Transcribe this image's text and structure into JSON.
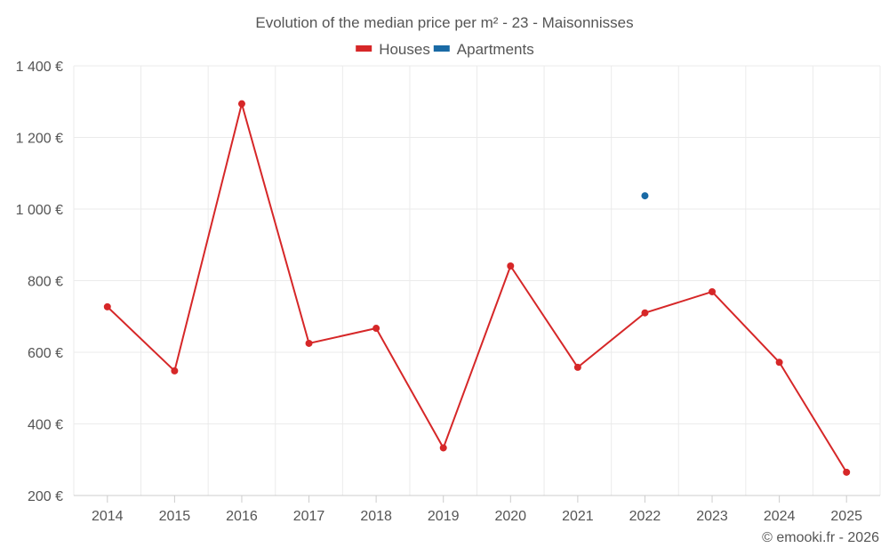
{
  "chart_data": {
    "type": "line",
    "title": "Evolution of the median price per m² - 23 - Maisonnisses",
    "categories": [
      "2014",
      "2015",
      "2016",
      "2017",
      "2018",
      "2019",
      "2020",
      "2021",
      "2022",
      "2023",
      "2024",
      "2025"
    ],
    "series": [
      {
        "name": "Houses",
        "color": "#d62728",
        "values": [
          727,
          548,
          1294,
          625,
          667,
          333,
          841,
          558,
          710,
          769,
          572,
          265
        ]
      },
      {
        "name": "Apartments",
        "color": "#1a6aa5",
        "values": [
          null,
          null,
          null,
          null,
          null,
          null,
          null,
          null,
          1037,
          null,
          null,
          null
        ]
      }
    ],
    "ylim": [
      200,
      1400
    ],
    "yticks": [
      200,
      400,
      600,
      800,
      1000,
      1200,
      1400
    ],
    "ytick_labels": [
      "200 €",
      "400 €",
      "600 €",
      "800 €",
      "1 000 €",
      "1 200 €",
      "1 400 €"
    ],
    "grid": true,
    "legend_position": "top-center",
    "xlabel": "",
    "ylabel": ""
  },
  "credit": "© emooki.fr - 2026"
}
